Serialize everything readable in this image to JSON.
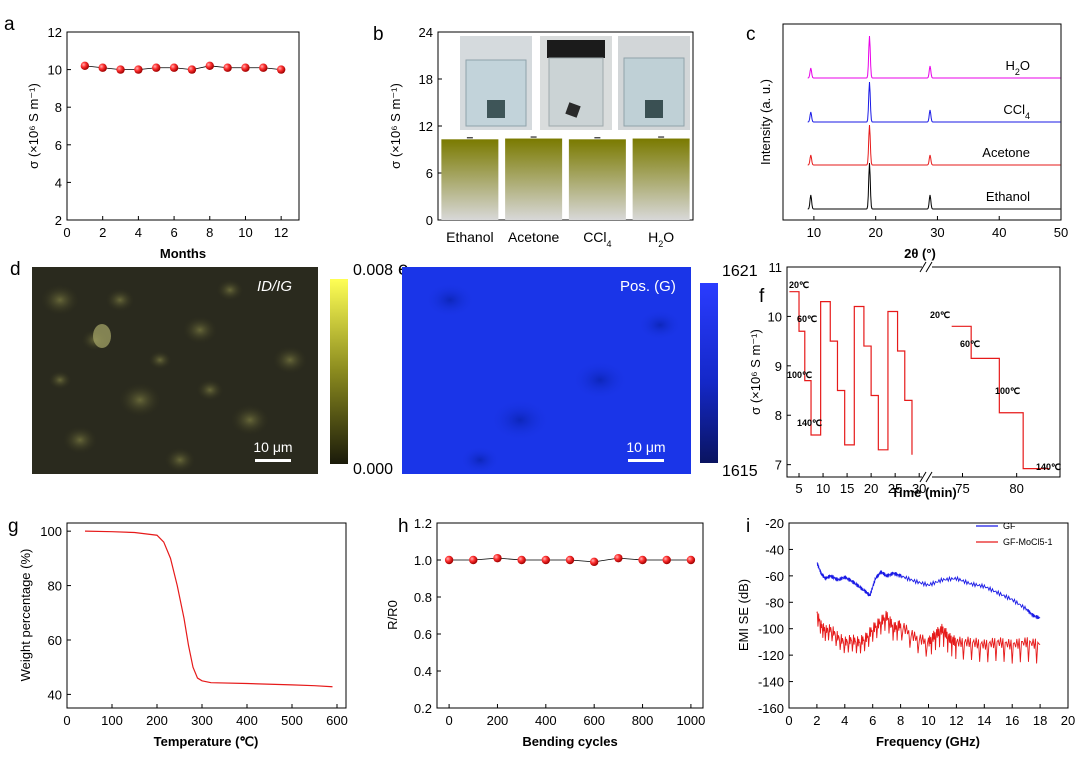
{
  "chart_data": [
    {
      "panel": "a",
      "type": "line",
      "xlabel": "Months",
      "ylabel": "σ (×10⁶ S m⁻¹)",
      "xlim": [
        0,
        13
      ],
      "ylim": [
        2,
        12
      ],
      "xticks": [
        0,
        2,
        4,
        6,
        8,
        10,
        12
      ],
      "yticks": [
        2,
        4,
        6,
        8,
        10,
        12
      ],
      "x": [
        1,
        2,
        3,
        4,
        5,
        6,
        7,
        8,
        9,
        10,
        11,
        12
      ],
      "y": [
        10.2,
        10.1,
        10.0,
        10.0,
        10.1,
        10.1,
        10.0,
        10.2,
        10.1,
        10.1,
        10.1,
        10.0
      ]
    },
    {
      "panel": "b",
      "type": "bar",
      "ylabel": "σ (×10⁶ S m⁻¹)",
      "ylim": [
        0,
        24
      ],
      "yticks": [
        0,
        6,
        12,
        18,
        24
      ],
      "categories": [
        "Ethanol",
        "Acetone",
        "CCl4",
        "H2O"
      ],
      "values": [
        10.3,
        10.4,
        10.3,
        10.4
      ],
      "photos": [
        "vial-ethanol",
        "vial-acetone",
        "vial-h2o"
      ]
    },
    {
      "panel": "c",
      "type": "line",
      "xlabel": "2θ (°)",
      "ylabel": "Intensity (a. u.)",
      "xlim": [
        5,
        50
      ],
      "xticks": [
        10,
        20,
        30,
        40,
        50
      ],
      "peaks": [
        9.5,
        19.0,
        28.8
      ],
      "series": [
        {
          "name": "H2O",
          "color": "#e800e8"
        },
        {
          "name": "CCl4",
          "color": "#1a1ae6"
        },
        {
          "name": "Acetone",
          "color": "#e61a1a"
        },
        {
          "name": "Ethanol",
          "color": "#000000"
        }
      ]
    },
    {
      "panel": "d",
      "type": "heatmap",
      "label": "ID/IG",
      "scale_bar": "10 μm",
      "colorbar_max": "0.008",
      "colorbar_min": "0.000"
    },
    {
      "panel": "e",
      "type": "heatmap",
      "label": "Pos. (G)",
      "scale_bar": "10 μm",
      "colorbar_max": "1621",
      "colorbar_min": "1615"
    },
    {
      "panel": "f",
      "type": "line",
      "xlabel": "Time (min)",
      "ylabel": "σ (×10⁶ S m⁻¹)",
      "ylim": [
        6.8,
        11
      ],
      "yticks": [
        7,
        8,
        9,
        10,
        11
      ],
      "xticks_left": [
        5,
        10,
        15,
        20,
        25,
        30
      ],
      "xticks_right": [
        75,
        80
      ],
      "temperatures": [
        "20℃",
        "60℃",
        "100℃",
        "140℃"
      ],
      "left_segment": [
        [
          3,
          10.5
        ],
        [
          5,
          10.5
        ],
        [
          5,
          9.7
        ],
        [
          6.2,
          9.7
        ],
        [
          6.2,
          8.7
        ],
        [
          7.5,
          8.7
        ],
        [
          7.5,
          7.6
        ],
        [
          9.5,
          7.6
        ],
        [
          9.5,
          10.3
        ],
        [
          11.5,
          10.3
        ],
        [
          11.5,
          9.5
        ],
        [
          13,
          9.5
        ],
        [
          13,
          8.5
        ],
        [
          14.5,
          8.5
        ],
        [
          14.5,
          7.4
        ],
        [
          16.5,
          7.4
        ],
        [
          16.5,
          10.2
        ],
        [
          18.5,
          10.2
        ],
        [
          18.5,
          9.4
        ],
        [
          20,
          9.4
        ],
        [
          20,
          8.4
        ],
        [
          21.5,
          8.4
        ],
        [
          21.5,
          7.3
        ],
        [
          23.5,
          7.3
        ],
        [
          23.5,
          10.1
        ],
        [
          25.5,
          10.1
        ],
        [
          25.5,
          9.3
        ],
        [
          27,
          9.3
        ],
        [
          27,
          8.3
        ],
        [
          28.5,
          8.3
        ],
        [
          28.5,
          7.2
        ]
      ],
      "right_segment": [
        [
          74,
          9.8
        ],
        [
          75.8,
          9.8
        ],
        [
          75.8,
          9.15
        ],
        [
          78.4,
          9.15
        ],
        [
          78.4,
          8.05
        ],
        [
          80.6,
          8.05
        ],
        [
          80.6,
          6.92
        ],
        [
          83,
          6.92
        ]
      ]
    },
    {
      "panel": "g",
      "type": "line",
      "xlabel": "Temperature (℃)",
      "ylabel": "Weight percentage (%)",
      "xlim": [
        0,
        620
      ],
      "ylim": [
        35,
        103
      ],
      "xticks": [
        0,
        100,
        200,
        300,
        400,
        500,
        600
      ],
      "yticks": [
        40,
        60,
        80,
        100
      ],
      "x": [
        40,
        100,
        150,
        200,
        215,
        230,
        245,
        260,
        270,
        280,
        290,
        300,
        320,
        400,
        500,
        550,
        590
      ],
      "y": [
        100,
        99.8,
        99.5,
        98.5,
        96,
        90,
        80,
        68,
        58,
        50,
        46,
        45,
        44.3,
        44,
        43.5,
        43.2,
        42.8
      ]
    },
    {
      "panel": "h",
      "type": "line",
      "xlabel": "Bending cycles",
      "ylabel": "R/R0",
      "xlim": [
        -50,
        1050
      ],
      "ylim": [
        0.2,
        1.2
      ],
      "xticks": [
        0,
        200,
        400,
        600,
        800,
        1000
      ],
      "yticks": [
        0.2,
        0.4,
        0.6,
        0.8,
        1.0,
        1.2
      ],
      "x": [
        0,
        100,
        200,
        300,
        400,
        500,
        600,
        700,
        800,
        900,
        1000
      ],
      "y": [
        1.0,
        1.0,
        1.01,
        1.0,
        1.0,
        1.0,
        0.99,
        1.01,
        1.0,
        1.0,
        1.0
      ]
    },
    {
      "panel": "i",
      "type": "line",
      "xlabel": "Frequency (GHz)",
      "ylabel": "EMI SE (dB)",
      "xlim": [
        0,
        20
      ],
      "ylim": [
        -160,
        -20
      ],
      "xticks": [
        0,
        2,
        4,
        6,
        8,
        10,
        12,
        14,
        16,
        18,
        20
      ],
      "yticks": [
        -160,
        -140,
        -120,
        -100,
        -80,
        -60,
        -40,
        -20
      ],
      "series": [
        {
          "name": "GF",
          "color": "#1a1ae6",
          "x": [
            2,
            2.3,
            2.6,
            3,
            3.5,
            4,
            4.5,
            5,
            5.5,
            5.8,
            6.2,
            6.6,
            7,
            7.5,
            8,
            9,
            10,
            11,
            12,
            13,
            14,
            15,
            16,
            17,
            17.5,
            18
          ],
          "y": [
            -50,
            -58,
            -62,
            -60,
            -63,
            -61,
            -64,
            -68,
            -72,
            -75,
            -62,
            -57,
            -60,
            -58,
            -60,
            -64,
            -67,
            -63,
            -62,
            -66,
            -68,
            -73,
            -78,
            -85,
            -90,
            -92
          ]
        },
        {
          "name": "GF-MoCl5-1",
          "color": "#e61a1a",
          "x": [
            2,
            2.3,
            2.6,
            3,
            3.5,
            4,
            4.5,
            5,
            5.5,
            6,
            6.5,
            7,
            7.5,
            8,
            9,
            10,
            10.5,
            11,
            11.5,
            12,
            13,
            14,
            15,
            16,
            17,
            18
          ],
          "y": [
            -88,
            -97,
            -101,
            -100,
            -106,
            -110,
            -108,
            -110,
            -107,
            -100,
            -95,
            -90,
            -99,
            -97,
            -106,
            -110,
            -104,
            -100,
            -107,
            -110,
            -110,
            -112,
            -110,
            -112,
            -110,
            -112
          ]
        }
      ]
    }
  ]
}
